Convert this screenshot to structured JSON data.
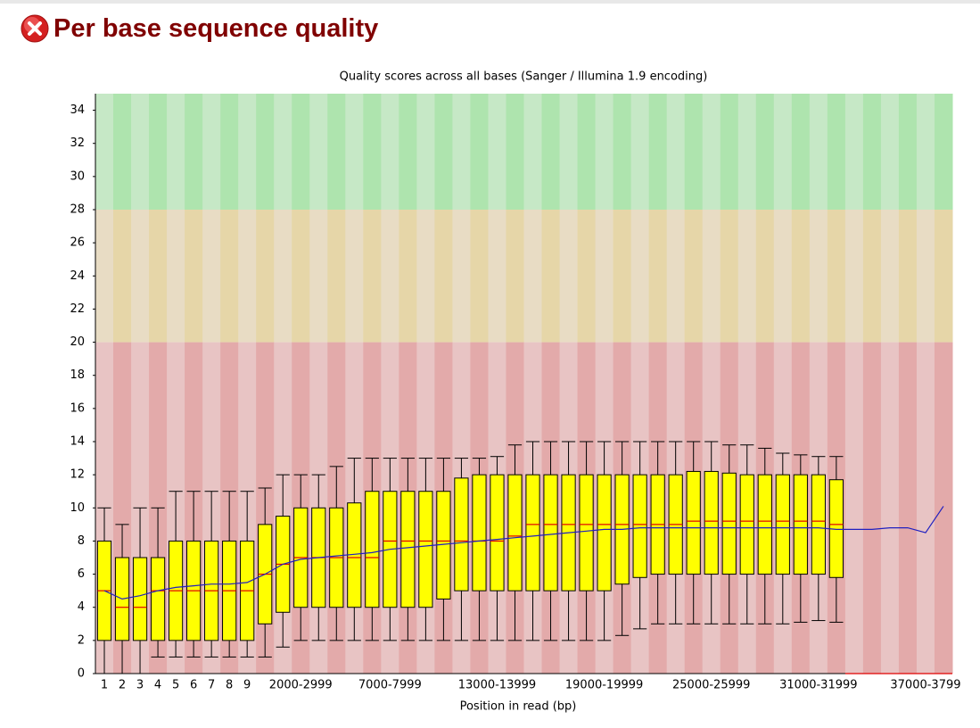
{
  "header": {
    "title": "Per base sequence quality"
  },
  "chart_data": {
    "type": "boxplot",
    "title": "Quality scores across all bases (Sanger / Illumina 1.9 encoding)",
    "x_label": "Position in read (bp)",
    "categories": [
      "1",
      "2",
      "3",
      "4",
      "5",
      "6",
      "7",
      "8",
      "9",
      null,
      null,
      "2000-2999",
      null,
      null,
      null,
      null,
      "7000-7999",
      null,
      null,
      null,
      null,
      null,
      "13000-13999",
      null,
      null,
      null,
      null,
      null,
      "19000-19999",
      null,
      null,
      null,
      null,
      null,
      "25000-25999",
      null,
      null,
      null,
      null,
      null,
      "31000-31999",
      null,
      null,
      null,
      null,
      null,
      "37000-3799",
      null
    ],
    "ylim": [
      0,
      35
    ],
    "yticks": [
      0,
      2,
      4,
      6,
      8,
      10,
      12,
      14,
      16,
      18,
      20,
      22,
      24,
      26,
      28,
      30,
      32,
      34
    ],
    "zones": [
      {
        "range": [
          0,
          20
        ],
        "colors": [
          "#e8c4c4",
          "#e3aaaa"
        ]
      },
      {
        "range": [
          20,
          28
        ],
        "colors": [
          "#e8dcc4",
          "#e6d6a8"
        ]
      },
      {
        "range": [
          28,
          35
        ],
        "colors": [
          "#c6e8c6",
          "#aee4ae"
        ]
      }
    ],
    "box_color": "#ffff00",
    "median_color": "#e00000",
    "mean_color": "#2020c0",
    "lower_whisker": [
      0,
      0,
      0,
      1,
      1,
      1,
      1,
      1,
      1,
      1,
      1.6,
      2,
      2,
      2,
      2,
      2,
      2,
      2,
      2,
      2,
      2,
      2,
      2,
      2,
      2,
      2,
      2,
      2,
      2,
      2.3,
      2.7,
      3,
      3,
      3,
      3,
      3,
      3,
      3,
      3,
      3.1,
      3.2,
      3.1,
      null,
      null,
      null,
      null,
      null,
      null
    ],
    "q1": [
      2,
      2,
      2,
      2,
      2,
      2,
      2,
      2,
      2,
      3,
      3.7,
      4,
      4,
      4,
      4,
      4,
      4,
      4,
      4,
      4.5,
      5,
      5,
      5,
      5,
      5,
      5,
      5,
      5,
      5,
      5.4,
      5.8,
      6,
      6,
      6,
      6,
      6,
      6,
      6,
      6,
      6,
      6,
      5.8,
      null,
      null,
      null,
      null,
      null,
      null
    ],
    "median": [
      5,
      4,
      4,
      5,
      5,
      5,
      5,
      5,
      5,
      6,
      6.6,
      7,
      7,
      7,
      7,
      7,
      8,
      8,
      8,
      8,
      8,
      8,
      8,
      8.3,
      9,
      9,
      9,
      9,
      9,
      9,
      9,
      9,
      9,
      9.2,
      9.2,
      9.2,
      9.2,
      9.2,
      9.2,
      9.2,
      9.2,
      9,
      0,
      0,
      0,
      0,
      0,
      0
    ],
    "q3": [
      8,
      7,
      7,
      7,
      8,
      8,
      8,
      8,
      8,
      9,
      9.5,
      10,
      10,
      10,
      10.3,
      11,
      11,
      11,
      11,
      11,
      11.8,
      12,
      12,
      12,
      12,
      12,
      12,
      12,
      12,
      12,
      12,
      12,
      12,
      12.2,
      12.2,
      12.1,
      12,
      12,
      12,
      12,
      12,
      11.7,
      null,
      null,
      null,
      null,
      null,
      null
    ],
    "upper_whisker": [
      10,
      9,
      10,
      10,
      11,
      11,
      11,
      11,
      11,
      11.2,
      12,
      12,
      12,
      12.5,
      13,
      13,
      13,
      13,
      13,
      13,
      13,
      13,
      13.1,
      13.8,
      14,
      14,
      14,
      14,
      14,
      14,
      14,
      14,
      14,
      14,
      14,
      13.8,
      13.8,
      13.6,
      13.3,
      13.2,
      13.1,
      13.1,
      null,
      null,
      null,
      null,
      null,
      null
    ],
    "mean": [
      5,
      4.5,
      4.7,
      5,
      5.2,
      5.3,
      5.4,
      5.4,
      5.5,
      6,
      6.6,
      6.9,
      7,
      7.1,
      7.2,
      7.3,
      7.5,
      7.6,
      7.7,
      7.8,
      7.9,
      8,
      8.1,
      8.2,
      8.3,
      8.4,
      8.5,
      8.6,
      8.7,
      8.7,
      8.8,
      8.8,
      8.8,
      8.8,
      8.8,
      8.8,
      8.8,
      8.8,
      8.8,
      8.8,
      8.8,
      8.7,
      8.7,
      8.7,
      8.8,
      8.8,
      8.5,
      10.1
    ]
  }
}
